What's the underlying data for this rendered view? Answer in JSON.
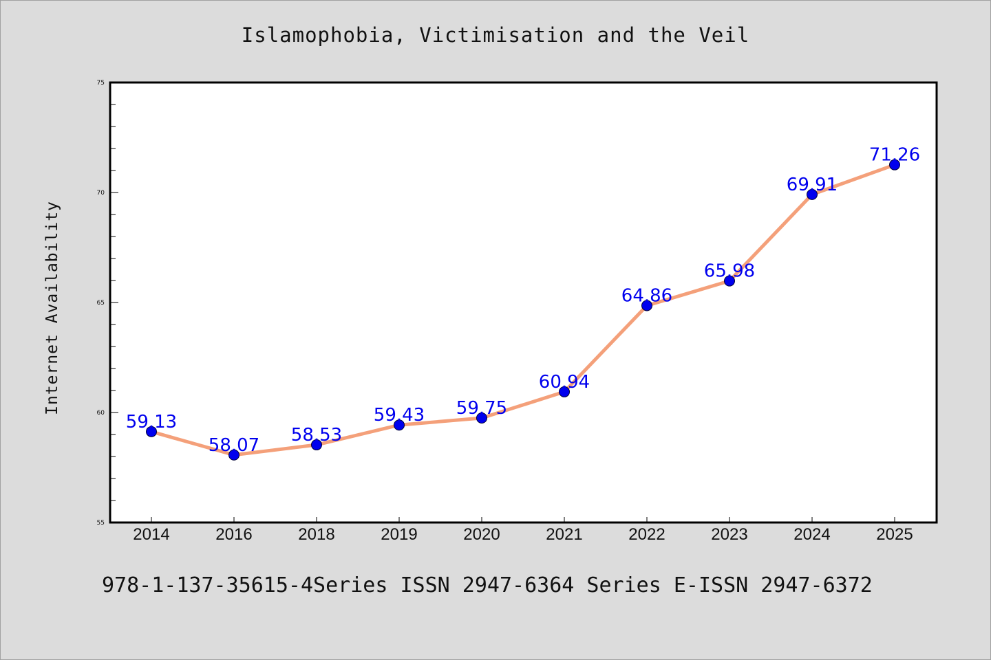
{
  "title": "Islamophobia, Victimisation and the Veil",
  "footer": "978-1-137-35615-4Series ISSN 2947-6364 Series E-ISSN 2947-6372",
  "colors": {
    "background": "#dcdcdc",
    "plot_background": "#ffffff",
    "line": "#f4a07a",
    "marker": "#0000ee",
    "data_label": "#0000ee"
  },
  "chart_data": {
    "type": "line",
    "title": "Islamophobia, Victimisation and the Veil",
    "xlabel": "",
    "ylabel": "Internet Availability",
    "categories": [
      "2014",
      "2016",
      "2018",
      "2019",
      "2020",
      "2021",
      "2022",
      "2023",
      "2024",
      "2025"
    ],
    "series": [
      {
        "values": [
          59.13,
          58.07,
          58.53,
          59.43,
          59.75,
          60.94,
          64.86,
          65.98,
          69.91,
          71.26
        ],
        "labels": [
          "59.13",
          "58.07",
          "58.53",
          "59.43",
          "59.75",
          "60.94",
          "64.86",
          "65.98",
          "69.91",
          "71.26"
        ]
      }
    ],
    "ylim": [
      55,
      75
    ],
    "yticks": [
      "55",
      "60",
      "65",
      "70",
      "75"
    ],
    "grid": false,
    "legend": "none"
  }
}
